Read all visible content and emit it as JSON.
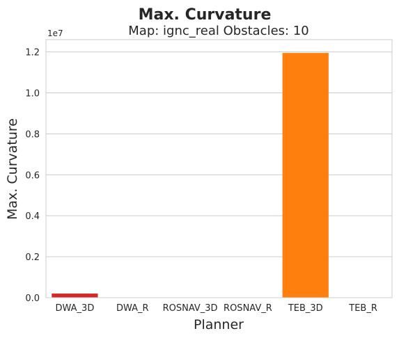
{
  "chart_data": {
    "type": "bar",
    "suptitle": "Max. Curvature",
    "title": "Map: ignc_real Obstacles: 10",
    "xlabel": "Planner",
    "ylabel": "Max. Curvature",
    "y_offset_label": "1e7",
    "categories": [
      "DWA_3D",
      "DWA_R",
      "ROSNAV_3D",
      "ROSNAV_R",
      "TEB_3D",
      "TEB_R"
    ],
    "values": [
      200000,
      0,
      0,
      0,
      11950000,
      0
    ],
    "colors": [
      "#d62728",
      "#1f77b4",
      "#2ca02c",
      "#9467bd",
      "#ff7f0e",
      "#8c564b"
    ],
    "ylim": [
      0,
      12600000
    ],
    "yticks": [
      0,
      2000000,
      4000000,
      6000000,
      8000000,
      10000000,
      12000000
    ],
    "ytick_labels": [
      "0.0",
      "0.2",
      "0.4",
      "0.6",
      "0.8",
      "1.0",
      "1.2"
    ],
    "grid": true,
    "legend": "none"
  }
}
